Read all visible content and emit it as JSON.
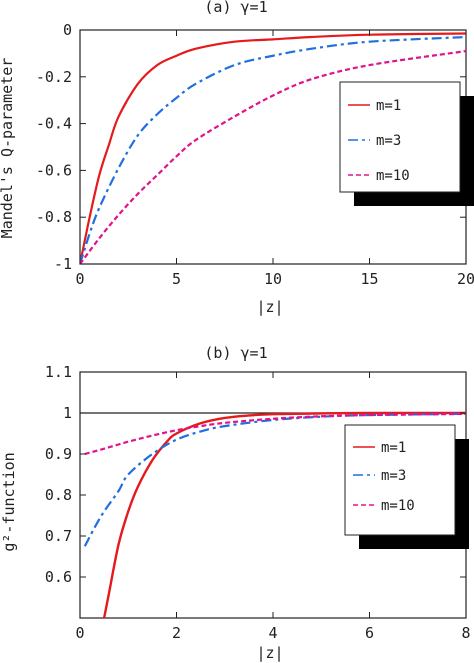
{
  "chart_data": [
    {
      "type": "line",
      "title": "(a)  γ=1",
      "xlabel": "|z|",
      "ylabel": "Mandel's Q-parameter",
      "xlim": [
        0,
        20
      ],
      "ylim": [
        -1,
        0
      ],
      "xticks": [
        0,
        5,
        10,
        15,
        20
      ],
      "yticks": [
        0,
        -0.2,
        -0.4,
        -0.6,
        -0.8,
        -1
      ],
      "xtick_labels": [
        "0",
        "5",
        "10",
        "15",
        "20"
      ],
      "ytick_labels": [
        "0",
        "-0.2",
        "-0.4",
        "-0.6",
        "-0.8",
        "-1"
      ],
      "legend_position": "top-right",
      "series": [
        {
          "name": "m=1",
          "color": "#e41a1c",
          "dash": "solid",
          "x": [
            0,
            0.5,
            1,
            1.5,
            2,
            3,
            4,
            5,
            6,
            8,
            10,
            12,
            15,
            20
          ],
          "y": [
            -1,
            -0.8,
            -0.62,
            -0.49,
            -0.37,
            -0.23,
            -0.15,
            -0.11,
            -0.08,
            -0.05,
            -0.04,
            -0.03,
            -0.02,
            -0.015
          ]
        },
        {
          "name": "m=3",
          "color": "#1f6fe0",
          "dash": "dashdot",
          "x": [
            0,
            0.5,
            1,
            2,
            3,
            4,
            5,
            6,
            8,
            10,
            12,
            15,
            20
          ],
          "y": [
            -1,
            -0.87,
            -0.76,
            -0.59,
            -0.45,
            -0.36,
            -0.29,
            -0.23,
            -0.15,
            -0.11,
            -0.08,
            -0.05,
            -0.03
          ]
        },
        {
          "name": "m=10",
          "color": "#e0138c",
          "dash": "dashed",
          "x": [
            0,
            1,
            2,
            3,
            4,
            5,
            6,
            8,
            10,
            12,
            15,
            20
          ],
          "y": [
            -1,
            -0.89,
            -0.79,
            -0.7,
            -0.62,
            -0.54,
            -0.47,
            -0.37,
            -0.28,
            -0.21,
            -0.15,
            -0.09
          ]
        }
      ]
    },
    {
      "type": "line",
      "title": "(b)  γ=1",
      "xlabel": "|z|",
      "ylabel": "g²-function",
      "xlim": [
        0,
        8
      ],
      "ylim": [
        0.5,
        1.1
      ],
      "xticks": [
        0,
        2,
        4,
        6,
        8
      ],
      "yticks": [
        1.1,
        1,
        0.9,
        0.8,
        0.7,
        0.6
      ],
      "xtick_labels": [
        "0",
        "2",
        "4",
        "6",
        "8"
      ],
      "ytick_labels": [
        "1.1",
        "1",
        "0.9",
        "0.8",
        "0.7",
        "0.6"
      ],
      "reference_line": 1,
      "legend_position": "right",
      "series": [
        {
          "name": "m=1",
          "color": "#e41a1c",
          "dash": "solid",
          "x": [
            0.5,
            0.6,
            0.8,
            1,
            1.2,
            1.5,
            1.8,
            2,
            2.5,
            3,
            3.5,
            4,
            5,
            6,
            8
          ],
          "y": [
            0.5,
            0.56,
            0.68,
            0.76,
            0.82,
            0.885,
            0.93,
            0.95,
            0.975,
            0.988,
            0.994,
            0.997,
            0.999,
            1.0,
            1.0
          ]
        },
        {
          "name": "m=3",
          "color": "#1f6fe0",
          "dash": "dashdot",
          "x": [
            0.1,
            0.3,
            0.5,
            0.8,
            1,
            1.5,
            2,
            2.5,
            3,
            4,
            5,
            6,
            8
          ],
          "y": [
            0.675,
            0.72,
            0.76,
            0.81,
            0.85,
            0.9,
            0.935,
            0.955,
            0.968,
            0.983,
            0.991,
            0.995,
            0.998
          ]
        },
        {
          "name": "m=10",
          "color": "#e0138c",
          "dash": "dashed",
          "x": [
            0.1,
            0.5,
            1,
            1.5,
            2,
            2.5,
            3,
            4,
            5,
            6,
            8
          ],
          "y": [
            0.9,
            0.913,
            0.93,
            0.945,
            0.958,
            0.968,
            0.976,
            0.986,
            0.992,
            0.995,
            0.998
          ]
        }
      ]
    }
  ]
}
